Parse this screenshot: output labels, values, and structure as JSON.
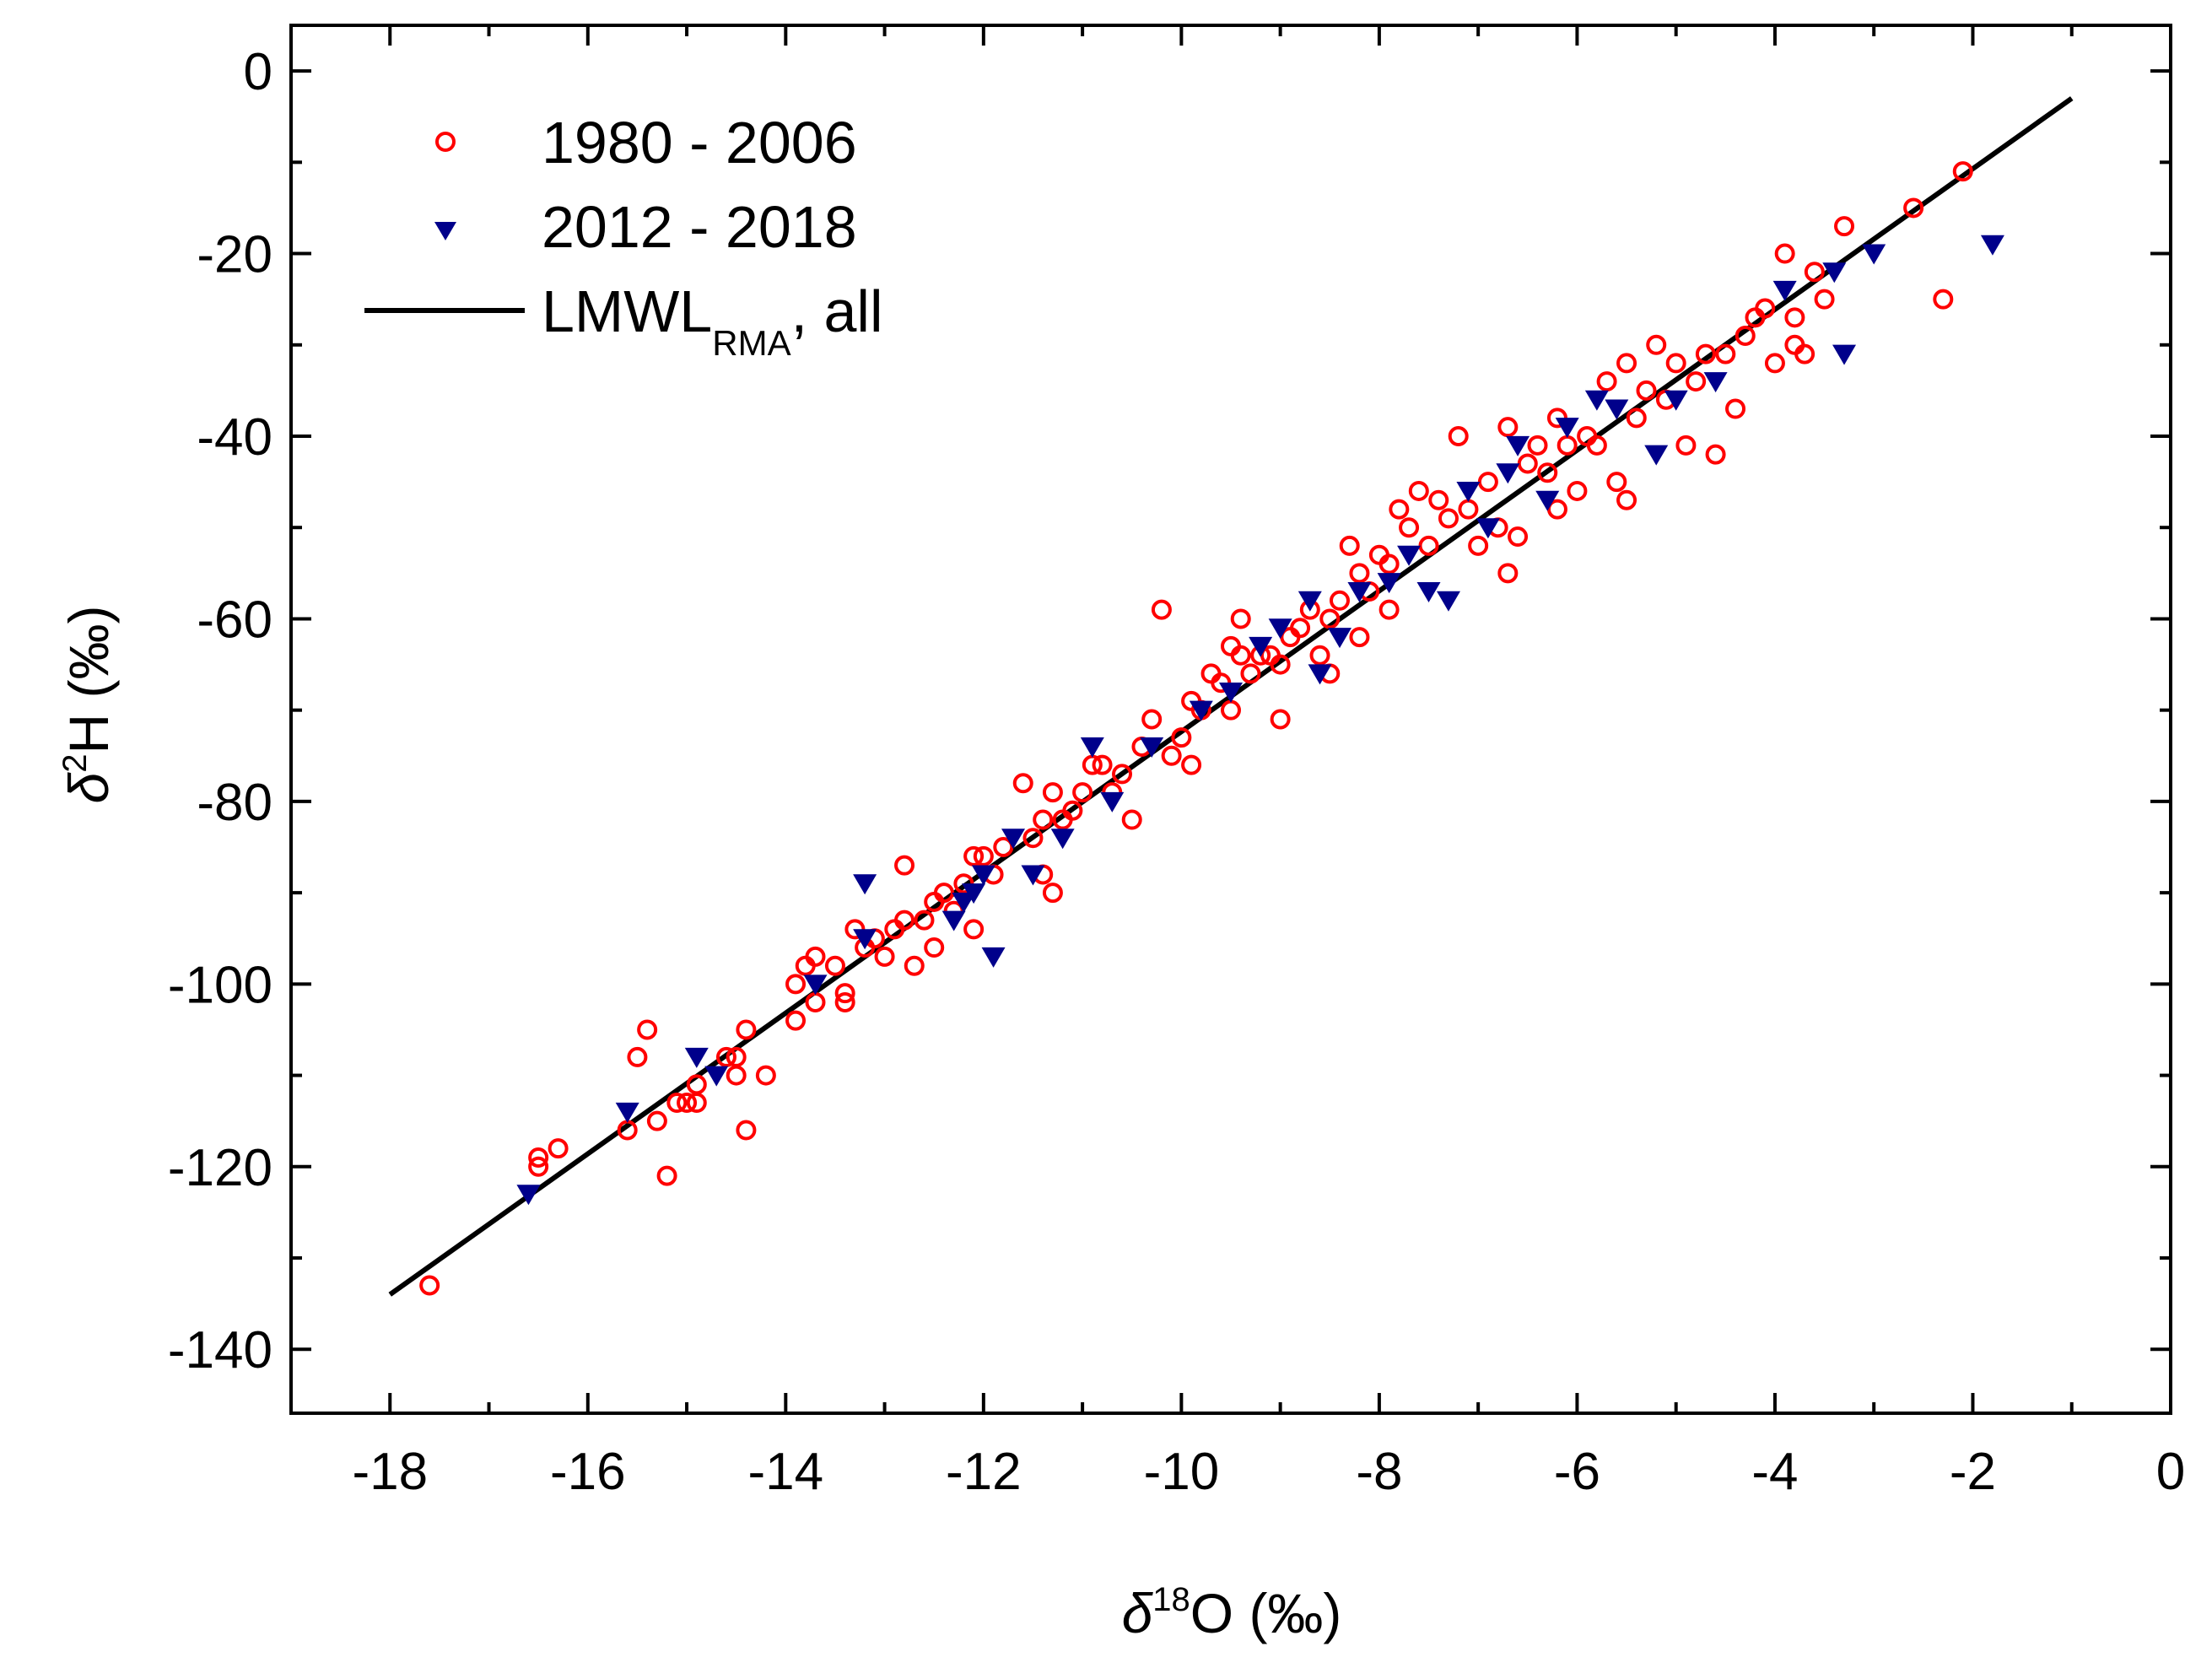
{
  "chart_data": {
    "type": "scatter",
    "xlabel": {
      "delta": "δ",
      "sup": "18",
      "rest": "O (‰)"
    },
    "ylabel": {
      "delta": "δ",
      "sup": "2",
      "rest": "H (‰)"
    },
    "xlim": [
      -19,
      0
    ],
    "ylim": [
      -147,
      5
    ],
    "x_ticks": [
      -18,
      -16,
      -14,
      -12,
      -10,
      -8,
      -6,
      -4,
      -2,
      0
    ],
    "x_tick_labels": [
      "-18",
      "-16",
      "-14",
      "-12",
      "-10",
      "-8",
      "-6",
      "-4",
      "-2",
      "0"
    ],
    "y_ticks": [
      0,
      -20,
      -40,
      -60,
      -80,
      -100,
      -120,
      -140
    ],
    "y_tick_labels": [
      "0",
      "-20",
      "-40",
      "-60",
      "-80",
      "-100",
      "-120",
      "-140"
    ],
    "grid": false,
    "legend_position": "top-left",
    "legend": {
      "series1": "1980 - 2006",
      "series2": "2012 - 2018",
      "line_main": "LMWL",
      "line_sub": "RMA",
      "line_rest": ", all"
    },
    "series": [
      {
        "name": "1980 - 2006",
        "marker": "open-circle",
        "color": "#ff0000",
        "points": [
          [
            -17.6,
            -133
          ],
          [
            -16.5,
            -120
          ],
          [
            -16.5,
            -119
          ],
          [
            -16.3,
            -118
          ],
          [
            -15.6,
            -116
          ],
          [
            -15.5,
            -108
          ],
          [
            -15.4,
            -105
          ],
          [
            -15.3,
            -115
          ],
          [
            -15.2,
            -121
          ],
          [
            -15.1,
            -113
          ],
          [
            -15.0,
            -113
          ],
          [
            -14.9,
            -111
          ],
          [
            -14.9,
            -113
          ],
          [
            -14.6,
            -108
          ],
          [
            -14.5,
            -110
          ],
          [
            -14.5,
            -108
          ],
          [
            -14.4,
            -105
          ],
          [
            -14.4,
            -116
          ],
          [
            -14.2,
            -110
          ],
          [
            -13.9,
            -104
          ],
          [
            -13.9,
            -100
          ],
          [
            -13.8,
            -98
          ],
          [
            -13.7,
            -102
          ],
          [
            -13.7,
            -97
          ],
          [
            -13.5,
            -98
          ],
          [
            -13.4,
            -101
          ],
          [
            -13.4,
            -102
          ],
          [
            -13.3,
            -94
          ],
          [
            -13.2,
            -96
          ],
          [
            -13.1,
            -95
          ],
          [
            -13.0,
            -97
          ],
          [
            -12.9,
            -94
          ],
          [
            -12.8,
            -93
          ],
          [
            -12.8,
            -87
          ],
          [
            -12.7,
            -98
          ],
          [
            -12.6,
            -93
          ],
          [
            -12.5,
            -96
          ],
          [
            -12.5,
            -91
          ],
          [
            -12.4,
            -90
          ],
          [
            -12.3,
            -92
          ],
          [
            -12.2,
            -89
          ],
          [
            -12.1,
            -94
          ],
          [
            -12.1,
            -86
          ],
          [
            -12.0,
            -86
          ],
          [
            -11.9,
            -88
          ],
          [
            -11.8,
            -85
          ],
          [
            -11.6,
            -78
          ],
          [
            -11.5,
            -84
          ],
          [
            -11.4,
            -82
          ],
          [
            -11.4,
            -88
          ],
          [
            -11.3,
            -90
          ],
          [
            -11.3,
            -79
          ],
          [
            -11.2,
            -82
          ],
          [
            -11.1,
            -81
          ],
          [
            -11.0,
            -79
          ],
          [
            -10.9,
            -76
          ],
          [
            -10.8,
            -76
          ],
          [
            -10.7,
            -79
          ],
          [
            -10.6,
            -77
          ],
          [
            -10.5,
            -82
          ],
          [
            -10.4,
            -74
          ],
          [
            -10.3,
            -71
          ],
          [
            -10.2,
            -59
          ],
          [
            -10.1,
            -75
          ],
          [
            -10.0,
            -73
          ],
          [
            -9.9,
            -69
          ],
          [
            -9.9,
            -76
          ],
          [
            -9.8,
            -70
          ],
          [
            -9.7,
            -66
          ],
          [
            -9.6,
            -67
          ],
          [
            -9.5,
            -63
          ],
          [
            -9.5,
            -70
          ],
          [
            -9.4,
            -64
          ],
          [
            -9.4,
            -60
          ],
          [
            -9.3,
            -66
          ],
          [
            -9.2,
            -64
          ],
          [
            -9.1,
            -64
          ],
          [
            -9.0,
            -71
          ],
          [
            -9.0,
            -65
          ],
          [
            -8.9,
            -62
          ],
          [
            -8.8,
            -61
          ],
          [
            -8.7,
            -59
          ],
          [
            -8.6,
            -64
          ],
          [
            -8.5,
            -60
          ],
          [
            -8.5,
            -66
          ],
          [
            -8.4,
            -58
          ],
          [
            -8.3,
            -52
          ],
          [
            -8.2,
            -55
          ],
          [
            -8.2,
            -62
          ],
          [
            -8.1,
            -57
          ],
          [
            -8.0,
            -53
          ],
          [
            -7.9,
            -59
          ],
          [
            -7.9,
            -54
          ],
          [
            -7.8,
            -48
          ],
          [
            -7.7,
            -50
          ],
          [
            -7.6,
            -46
          ],
          [
            -7.5,
            -52
          ],
          [
            -7.4,
            -47
          ],
          [
            -7.3,
            -49
          ],
          [
            -7.2,
            -40
          ],
          [
            -7.1,
            -48
          ],
          [
            -7.0,
            -52
          ],
          [
            -6.9,
            -45
          ],
          [
            -6.8,
            -50
          ],
          [
            -6.7,
            -55
          ],
          [
            -6.7,
            -39
          ],
          [
            -6.6,
            -51
          ],
          [
            -6.5,
            -43
          ],
          [
            -6.4,
            -41
          ],
          [
            -6.3,
            -44
          ],
          [
            -6.2,
            -48
          ],
          [
            -6.2,
            -38
          ],
          [
            -6.1,
            -41
          ],
          [
            -6.0,
            -46
          ],
          [
            -5.9,
            -40
          ],
          [
            -5.8,
            -41
          ],
          [
            -5.7,
            -34
          ],
          [
            -5.6,
            -45
          ],
          [
            -5.5,
            -47
          ],
          [
            -5.5,
            -32
          ],
          [
            -5.4,
            -38
          ],
          [
            -5.3,
            -35
          ],
          [
            -5.2,
            -30
          ],
          [
            -5.1,
            -36
          ],
          [
            -5.0,
            -32
          ],
          [
            -4.9,
            -41
          ],
          [
            -4.8,
            -34
          ],
          [
            -4.7,
            -31
          ],
          [
            -4.6,
            -42
          ],
          [
            -4.5,
            -31
          ],
          [
            -4.4,
            -37
          ],
          [
            -4.3,
            -29
          ],
          [
            -4.2,
            -27
          ],
          [
            -4.1,
            -26
          ],
          [
            -4.0,
            -32
          ],
          [
            -3.9,
            -20
          ],
          [
            -3.8,
            -30
          ],
          [
            -3.8,
            -27
          ],
          [
            -3.7,
            -31
          ],
          [
            -3.6,
            -22
          ],
          [
            -3.5,
            -25
          ],
          [
            -3.3,
            -17
          ],
          [
            -2.6,
            -15
          ],
          [
            -2.3,
            -25
          ],
          [
            -2.1,
            -11
          ]
        ]
      },
      {
        "name": "2012 - 2018",
        "marker": "filled-down-triangle",
        "color": "#00008b",
        "points": [
          [
            -16.6,
            -123
          ],
          [
            -15.6,
            -114
          ],
          [
            -14.9,
            -108
          ],
          [
            -14.7,
            -110
          ],
          [
            -13.7,
            -100
          ],
          [
            -13.2,
            -95
          ],
          [
            -13.2,
            -89
          ],
          [
            -12.3,
            -93
          ],
          [
            -12.2,
            -91
          ],
          [
            -12.1,
            -90
          ],
          [
            -12.0,
            -88
          ],
          [
            -11.9,
            -97
          ],
          [
            -11.7,
            -84
          ],
          [
            -11.5,
            -88
          ],
          [
            -11.2,
            -84
          ],
          [
            -10.9,
            -74
          ],
          [
            -10.7,
            -80
          ],
          [
            -10.3,
            -74
          ],
          [
            -9.8,
            -70
          ],
          [
            -9.5,
            -68
          ],
          [
            -9.2,
            -63
          ],
          [
            -9.0,
            -61
          ],
          [
            -8.7,
            -58
          ],
          [
            -8.6,
            -66
          ],
          [
            -8.4,
            -62
          ],
          [
            -8.2,
            -57
          ],
          [
            -7.9,
            -56
          ],
          [
            -7.7,
            -53
          ],
          [
            -7.5,
            -57
          ],
          [
            -7.3,
            -58
          ],
          [
            -7.1,
            -46
          ],
          [
            -6.9,
            -50
          ],
          [
            -6.7,
            -44
          ],
          [
            -6.6,
            -41
          ],
          [
            -6.3,
            -47
          ],
          [
            -6.1,
            -39
          ],
          [
            -5.8,
            -36
          ],
          [
            -5.6,
            -37
          ],
          [
            -5.2,
            -42
          ],
          [
            -5.0,
            -36
          ],
          [
            -4.6,
            -34
          ],
          [
            -3.9,
            -24
          ],
          [
            -3.4,
            -22
          ],
          [
            -3.3,
            -31
          ],
          [
            -3.0,
            -20
          ],
          [
            -1.8,
            -19
          ]
        ]
      }
    ],
    "lines": [
      {
        "name": "LMWL_RMA, all",
        "color": "#000000",
        "x": [
          -18,
          -1
        ],
        "y": [
          -134,
          -3
        ]
      }
    ]
  }
}
